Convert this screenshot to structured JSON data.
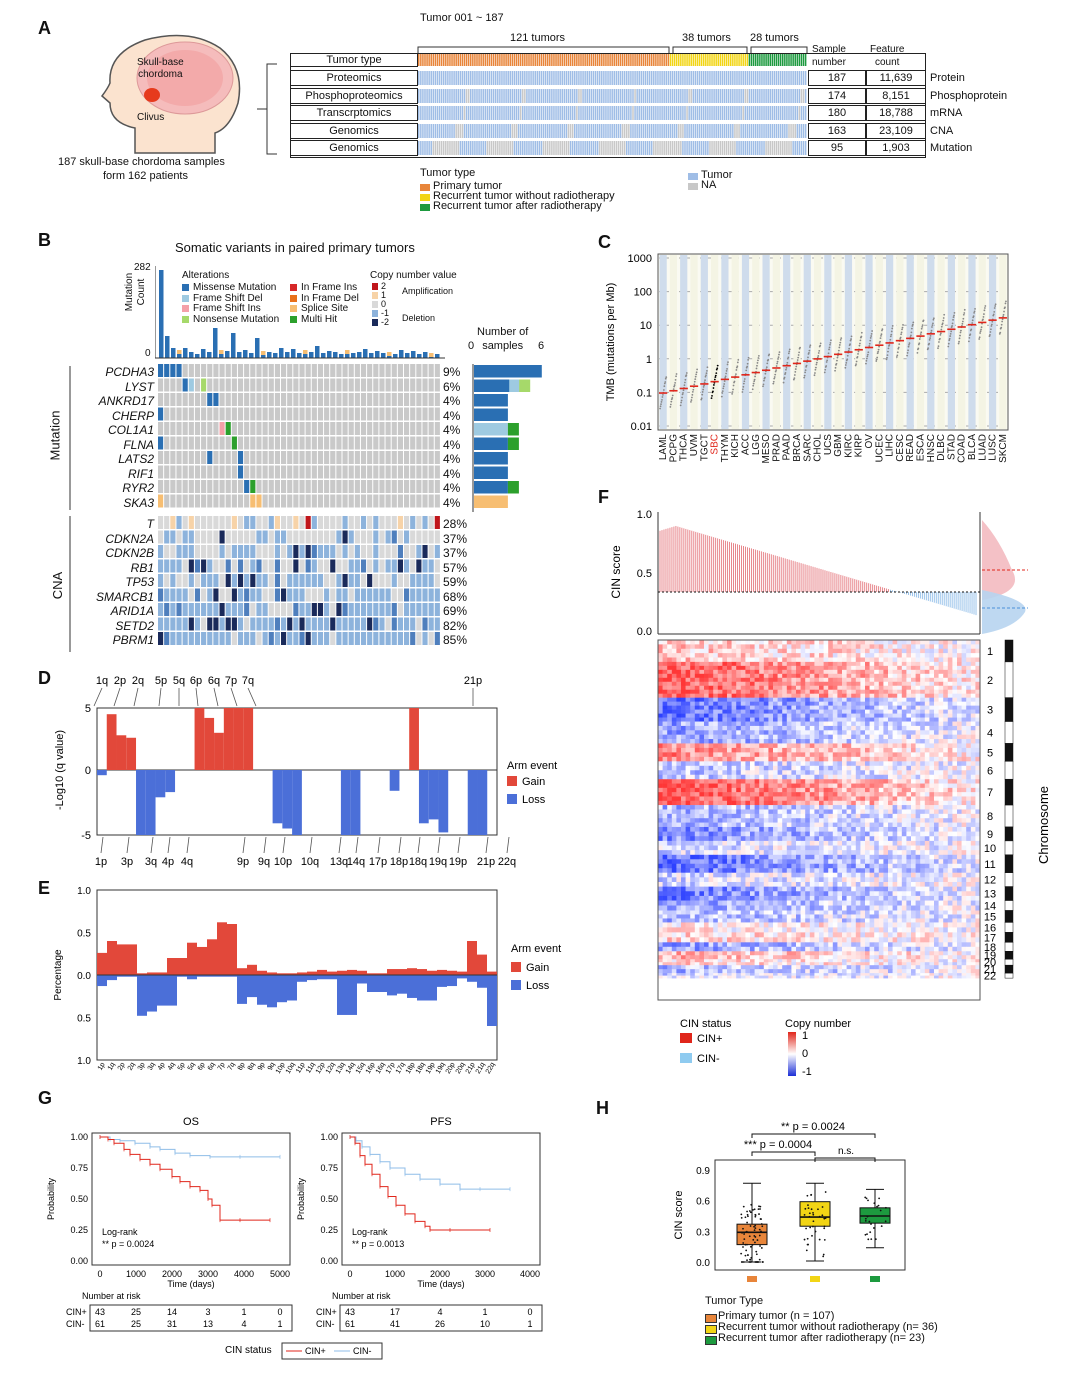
{
  "panels": {
    "A": "A",
    "B": "B",
    "C": "C",
    "D": "D",
    "E": "E",
    "F": "F",
    "G": "G",
    "H": "H"
  },
  "panelA": {
    "tumor_range": "Tumor 001 ~ 187",
    "groups": [
      "121 tumors",
      "38 tumors",
      "28 tumors"
    ],
    "head_labels": {
      "skull_base": "Skull-base\nchordoma",
      "clivus": "Clivus"
    },
    "samples_caption_1": "187 skull-base chordoma samples",
    "samples_caption_2": "form 162 patients",
    "col_sample": "Sample\nnumber",
    "col_feature": "Feature\ncount",
    "tumor_type_row": "Tumor type",
    "rows": [
      {
        "name": "Proteomics",
        "samples": "187",
        "features": "11,639",
        "type": "Protein"
      },
      {
        "name": "Phosphoproteomics",
        "samples": "174",
        "features": "8,151",
        "type": "Phosphoprotein"
      },
      {
        "name": "Transcrptomics",
        "samples": "180",
        "features": "18,788",
        "type": "mRNA"
      },
      {
        "name": "Genomics",
        "samples": "163",
        "features": "23,109",
        "type": "CNA"
      },
      {
        "name": "Genomics",
        "samples": "95",
        "features": "1,903",
        "type": "Mutation"
      }
    ],
    "legend_title": "Tumor type",
    "legend": [
      {
        "label": "Primary tumor",
        "color": "#e8853a"
      },
      {
        "label": "Recurrent tumor without radiotherapy",
        "color": "#f2d515"
      },
      {
        "label": "Recurrent tumor after radiotherapy",
        "color": "#1d9a3f"
      }
    ],
    "legend2": [
      {
        "label": "Tumor",
        "color": "#9fbde6"
      },
      {
        "label": "NA",
        "color": "#c8c8c8"
      }
    ]
  },
  "panelB": {
    "title": "Somatic variants in paired primary tumors",
    "ylabel": "Mutation\nCount",
    "ymax": "282",
    "ymin": "0",
    "alt_title": "Alterations",
    "alterations": [
      {
        "label": "Missense Mutation",
        "color": "#2a6fb3"
      },
      {
        "label": "In Frame Ins",
        "color": "#d62728"
      },
      {
        "label": "Frame Shift Del",
        "color": "#9ecae1"
      },
      {
        "label": "In Frame Del",
        "color": "#e8701a"
      },
      {
        "label": "Frame Shift Ins",
        "color": "#f4a0a8"
      },
      {
        "label": "Splice Site",
        "color": "#f7be72"
      },
      {
        "label": "Nonsense Mutation",
        "color": "#a6d96a"
      },
      {
        "label": "Multi Hit",
        "color": "#2ca02c"
      }
    ],
    "cn_title": "Copy number value",
    "cn_values": [
      {
        "label": "2",
        "color": "#c0161b"
      },
      {
        "label": "1",
        "color": "#f7d3a8"
      },
      {
        "label": "0",
        "color": "#d9d9d9"
      },
      {
        "label": "-1",
        "color": "#8db3dc"
      },
      {
        "label": "-2",
        "color": "#1a2a5a"
      }
    ],
    "amplification": "Amplification",
    "deletion": "Deletion",
    "num_samples_label": "Number of\nsamples",
    "num_samples_min": "0",
    "num_samples_max": "6",
    "mutation_group": "Mutation",
    "cna_group": "CNA",
    "mutation_genes": [
      {
        "gene": "PCDHA3",
        "pct": "9%"
      },
      {
        "gene": "LYST",
        "pct": "6%"
      },
      {
        "gene": "ANKRD17",
        "pct": "4%"
      },
      {
        "gene": "CHERP",
        "pct": "4%"
      },
      {
        "gene": "COL1A1",
        "pct": "4%"
      },
      {
        "gene": "FLNA",
        "pct": "4%"
      },
      {
        "gene": "LATS2",
        "pct": "4%"
      },
      {
        "gene": "RIF1",
        "pct": "4%"
      },
      {
        "gene": "RYR2",
        "pct": "4%"
      },
      {
        "gene": "SKA3",
        "pct": "4%"
      }
    ],
    "cna_genes": [
      {
        "gene": "T",
        "pct": "28%"
      },
      {
        "gene": "CDKN2A",
        "pct": "37%"
      },
      {
        "gene": "CDKN2B",
        "pct": "37%"
      },
      {
        "gene": "RB1",
        "pct": "57%"
      },
      {
        "gene": "TP53",
        "pct": "59%"
      },
      {
        "gene": "SMARCB1",
        "pct": "68%"
      },
      {
        "gene": "ARID1A",
        "pct": "69%"
      },
      {
        "gene": "SETD2",
        "pct": "82%"
      },
      {
        "gene": "PBRM1",
        "pct": "85%"
      }
    ]
  },
  "panelC": {
    "ylabel": "TMB (mutations per Mb)",
    "yticks": [
      "1000",
      "100",
      "10",
      "1",
      "0.1",
      "0.01"
    ],
    "cancers": [
      "LAML",
      "PCPG",
      "THCA",
      "UVM",
      "TGCT",
      "SBC",
      "THYM",
      "KICH",
      "ACC",
      "LGG",
      "MESO",
      "PRAD",
      "PAAD",
      "BRCA",
      "SARC",
      "CHOL",
      "UCS",
      "GBM",
      "KIRC",
      "KIRP",
      "OV",
      "UCEC",
      "LIHC",
      "CESC",
      "READ",
      "ESCA",
      "HNSC",
      "DLBC",
      "STAD",
      "COAD",
      "BLCA",
      "LUAD",
      "LUSC",
      "SKCM"
    ],
    "highlight": "SBC"
  },
  "panelD": {
    "ylabel": "-Log10 (q value)",
    "yticks": [
      "5",
      "0",
      "-5"
    ],
    "top_labels": [
      "1q",
      "2p",
      "2q",
      "5p",
      "5q",
      "6p",
      "6q",
      "7p",
      "7q",
      "21p"
    ],
    "bottom_labels": [
      "1p",
      "3p",
      "3q",
      "4p",
      "4q",
      "9p",
      "9q",
      "10p",
      "10q",
      "13q",
      "14q",
      "17p",
      "18p",
      "18q",
      "19q",
      "19p",
      "21p",
      "22q"
    ],
    "legend_title": "Arm event",
    "gain": "Gain",
    "loss": "Loss"
  },
  "panelE": {
    "ylabel": "Percentage",
    "yticks": [
      "1.0",
      "0.5",
      "0.0",
      "0.5",
      "1.0"
    ],
    "legend_title": "Arm event",
    "gain": "Gain",
    "loss": "Loss",
    "arms": [
      "1p",
      "1q",
      "2p",
      "2q",
      "3p",
      "3q",
      "4p",
      "4q",
      "5p",
      "5q",
      "6p",
      "6q",
      "7p",
      "7q",
      "8p",
      "8q",
      "9p",
      "9q",
      "10p",
      "10q",
      "11p",
      "11q",
      "12p",
      "12q",
      "13q",
      "14q",
      "15q",
      "16p",
      "16q",
      "17p",
      "17q",
      "18p",
      "18q",
      "19p",
      "19q",
      "20p",
      "20q",
      "21p",
      "21q",
      "22q"
    ]
  },
  "panelF": {
    "ylabel": "CIN score",
    "yticks": [
      "1.0",
      "0.5",
      "0.0"
    ],
    "chromosomes": [
      "1",
      "2",
      "3",
      "4",
      "5",
      "6",
      "7",
      "8",
      "9",
      "10",
      "11",
      "12",
      "13",
      "14",
      "15",
      "16",
      "17",
      "18",
      "19",
      "20",
      "21",
      "22"
    ],
    "chrom_axis": "Chromosome",
    "cin_status": "CIN status",
    "cin_pos": "CIN+",
    "cin_neg": "CIN-",
    "copy_number": "Copy number",
    "cn_ticks": [
      "1",
      "0",
      "-1"
    ]
  },
  "panelG": {
    "os": {
      "title": "OS",
      "xticks": [
        "0",
        "1000",
        "2000",
        "3000",
        "4000",
        "5000"
      ],
      "logrank": "Log-rank",
      "pval": "** p = 0.0024",
      "risk_pos": [
        "43",
        "25",
        "14",
        "3",
        "1",
        "0"
      ],
      "risk_neg": [
        "61",
        "25",
        "31",
        "13",
        "4",
        "1"
      ]
    },
    "pfs": {
      "title": "PFS",
      "xticks": [
        "0",
        "1000",
        "2000",
        "3000",
        "4000"
      ],
      "logrank": "Log-rank",
      "pval": "** p = 0.0013",
      "risk_pos": [
        "43",
        "17",
        "4",
        "1",
        "0"
      ],
      "risk_neg": [
        "61",
        "41",
        "26",
        "10",
        "1"
      ]
    },
    "yticks": [
      "1.00",
      "0.75",
      "0.50",
      "0.25",
      "0.00"
    ],
    "ylabel": "Probability",
    "xlabel": "Time (days)",
    "at_risk": "Number at risk",
    "cin_pos": "CIN+",
    "cin_neg": "CIN-",
    "legend_title": "CIN status"
  },
  "panelH": {
    "ylabel": "CIN score",
    "yticks": [
      "0.9",
      "0.6",
      "0.3",
      "0.0"
    ],
    "p1": "** p = 0.0024",
    "p2": "*** p = 0.0004",
    "ns": "n.s.",
    "legend_title": "Tumor Type",
    "groups": [
      {
        "label": "Primary tumor (n = 107)",
        "color": "#e8853a"
      },
      {
        "label": "Recurrent tumor without radiotherapy (n= 36)",
        "color": "#f2d515"
      },
      {
        "label": "Recurrent tumor after radiotherapy (n= 23)",
        "color": "#1d9a3f"
      }
    ]
  }
}
